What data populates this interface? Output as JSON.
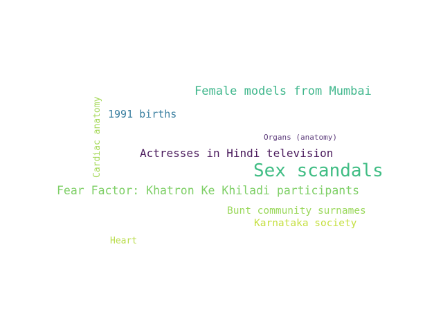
{
  "word_cloud": {
    "words": [
      {
        "id": "female_models",
        "text": "Female models from Mumbai",
        "color": "#3eb68b"
      },
      {
        "id": "births_1991",
        "text": "1991 births",
        "color": "#3a7fa0"
      },
      {
        "id": "cardiac_anatomy",
        "text": "Cardiac anatomy",
        "color": "#a6d95a"
      },
      {
        "id": "organs_anatomy",
        "text": "Organs (anatomy)",
        "color": "#5b3a7a"
      },
      {
        "id": "actresses_hindi",
        "text": "Actresses in Hindi television",
        "color": "#4a1a5c"
      },
      {
        "id": "sex_scandals",
        "text": "Sex scandals",
        "color": "#40bd84"
      },
      {
        "id": "fear_factor",
        "text": "Fear Factor: Khatron Ke Khiladi participants",
        "color": "#7ecf66"
      },
      {
        "id": "bunt_surnames",
        "text": "Bunt community surnames",
        "color": "#9ad85b"
      },
      {
        "id": "karnataka_society",
        "text": "Karnataka society",
        "color": "#c4df3e"
      },
      {
        "id": "heart",
        "text": "Heart",
        "color": "#b9dc4a"
      }
    ]
  }
}
